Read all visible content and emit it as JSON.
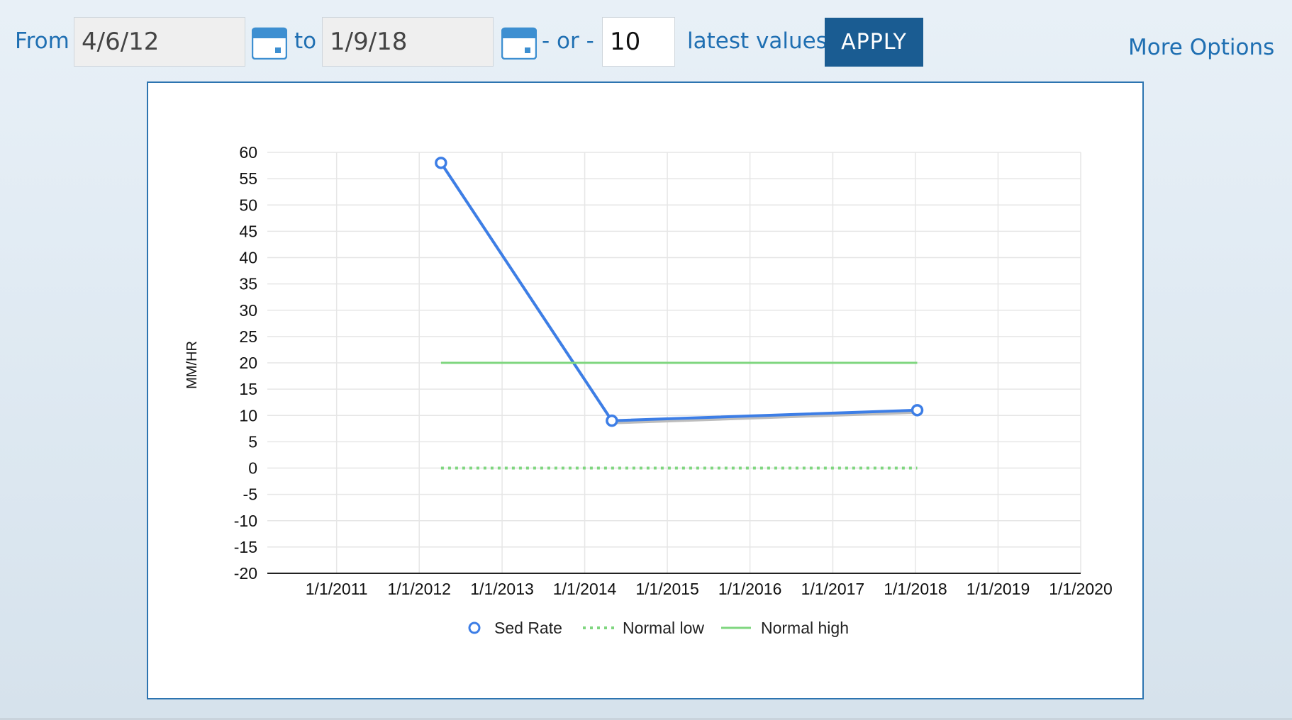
{
  "filter": {
    "from_label": "From",
    "from_value": "4/6/12",
    "to_label": "to",
    "to_value": "1/9/18",
    "or_label": "- or -",
    "count_value": "10",
    "latest_label": "latest values",
    "apply_label": "APPLY",
    "more_options_label": "More Options"
  },
  "icons": {
    "calendar": "calendar-icon"
  },
  "colors": {
    "accent": "#1f6fb2",
    "apply_bg": "#1a5c92",
    "series": "#3d7ee6",
    "normal": "#7fd67f",
    "chart_border": "#2d74b0"
  },
  "chart_data": {
    "type": "line",
    "title": "",
    "xlabel": "",
    "ylabel": "MM/HR",
    "ylim": [
      -20,
      60
    ],
    "xlim": [
      "2010-03-01",
      "2020-01-01"
    ],
    "yticks": [
      "60",
      "55",
      "50",
      "45",
      "40",
      "35",
      "30",
      "25",
      "20",
      "15",
      "10",
      "5",
      "0",
      "-5",
      "-10",
      "-15",
      "-20"
    ],
    "xticks": [
      {
        "date": "2011-01-01",
        "label": "1/1/2011"
      },
      {
        "date": "2012-01-01",
        "label": "1/1/2012"
      },
      {
        "date": "2013-01-01",
        "label": "1/1/2013"
      },
      {
        "date": "2014-01-01",
        "label": "1/1/2014"
      },
      {
        "date": "2015-01-01",
        "label": "1/1/2015"
      },
      {
        "date": "2016-01-01",
        "label": "1/1/2016"
      },
      {
        "date": "2017-01-01",
        "label": "1/1/2017"
      },
      {
        "date": "2018-01-01",
        "label": "1/1/2018"
      },
      {
        "date": "2019-01-01",
        "label": "1/1/2019"
      },
      {
        "date": "2020-01-01",
        "label": "1/1/2020"
      }
    ],
    "grid": true,
    "legend_position": "bottom-center",
    "series": [
      {
        "name": "Sed Rate",
        "style": "line-markers",
        "color": "#3d7ee6",
        "points": [
          {
            "x": "2012-04-06",
            "y": 58
          },
          {
            "x": "2014-05-01",
            "y": 9
          },
          {
            "x": "2018-01-09",
            "y": 11
          }
        ]
      },
      {
        "name": "Normal low",
        "style": "dotted",
        "color": "#7fd67f",
        "points": [
          {
            "x": "2012-04-06",
            "y": 0
          },
          {
            "x": "2018-01-09",
            "y": 0
          }
        ]
      },
      {
        "name": "Normal high",
        "style": "solid",
        "color": "#7fd67f",
        "points": [
          {
            "x": "2012-04-06",
            "y": 20
          },
          {
            "x": "2018-01-09",
            "y": 20
          }
        ]
      }
    ]
  }
}
